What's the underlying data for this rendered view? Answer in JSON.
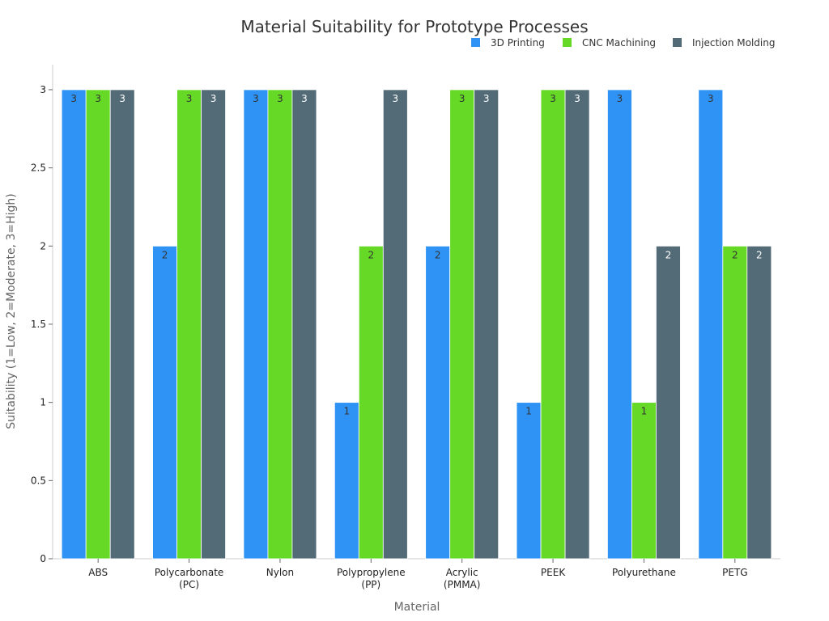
{
  "chart_data": {
    "type": "bar",
    "title": "Material Suitability for Prototype Processes",
    "xlabel": "Material",
    "ylabel": "Suitability (1=Low, 2=Moderate, 3=High)",
    "categories": [
      [
        "ABS"
      ],
      [
        "Polycarbonate",
        "(PC)"
      ],
      [
        "Nylon"
      ],
      [
        "Polypropylene",
        "(PP)"
      ],
      [
        "Acrylic",
        "(PMMA)"
      ],
      [
        "PEEK"
      ],
      [
        "Polyurethane"
      ],
      [
        "PETG"
      ]
    ],
    "series": [
      {
        "name": "3D Printing",
        "color": "#2f93f5",
        "label_color": "#333333",
        "values": [
          3,
          2,
          3,
          1,
          2,
          1,
          3,
          3
        ]
      },
      {
        "name": "CNC Machining",
        "color": "#66d927",
        "label_color": "#333333",
        "values": [
          3,
          3,
          3,
          2,
          3,
          3,
          1,
          2
        ]
      },
      {
        "name": "Injection Molding",
        "color": "#536b77",
        "label_color": "#ffffff",
        "values": [
          3,
          3,
          3,
          3,
          3,
          3,
          2,
          2
        ]
      }
    ],
    "ylim": [
      0,
      3.16
    ],
    "yticks": [
      "0",
      "0.5",
      "1",
      "1.5",
      "2",
      "2.5",
      "3"
    ],
    "grid": false,
    "legend": "top-right"
  }
}
